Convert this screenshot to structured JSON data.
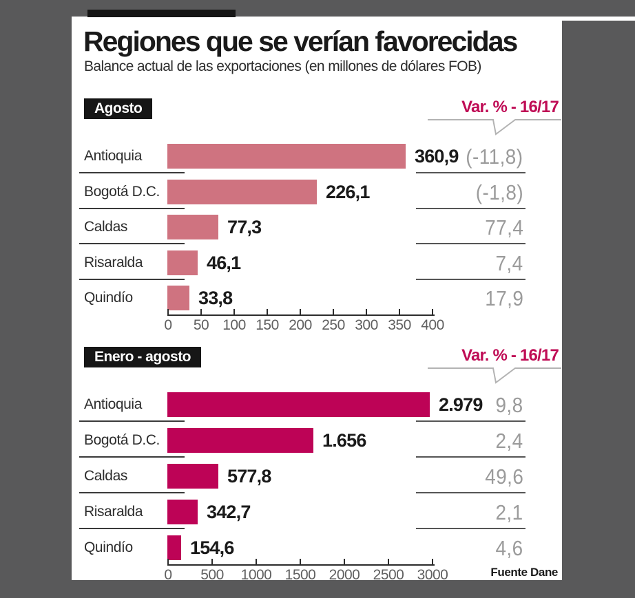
{
  "header": {
    "title": "Regiones que se verían favorecidas",
    "subtitle": "Balance actual de las exportaciones (en millones de dólares FOB)"
  },
  "source": "Fuente Dane",
  "colors": {
    "background": "#59595a",
    "card": "#ffffff",
    "tab_black": "#161616",
    "accent_crimson": "#bf0c55",
    "bar_light_rose": "#cf7380",
    "bar_dark_magenta": "#bd0356",
    "muted_gray_value": "#9b9b9b",
    "axis_label_gray": "#606060"
  },
  "chart_data": [
    {
      "type": "bar",
      "title": "Agosto",
      "var_header": "Var. % - 16/17",
      "categories": [
        "Antioquia",
        "Bogotá D.C.",
        "Caldas",
        "Risaralda",
        "Quindío"
      ],
      "values": [
        360.9,
        226.1,
        77.3,
        46.1,
        33.8
      ],
      "value_labels": [
        "360,9",
        "226,1",
        "77,3",
        "46,1",
        "33,8"
      ],
      "var_values": [
        -11.8,
        -1.8,
        77.4,
        7.4,
        17.9
      ],
      "var_labels": [
        "(-11,8)",
        "(-1,8)",
        "77,4",
        "7,4",
        "17,9"
      ],
      "bar_color": "#cf7380",
      "xlim": [
        0,
        400
      ],
      "x_ticks": [
        0,
        50,
        100,
        150,
        200,
        250,
        300,
        350,
        400
      ],
      "tick_labels": [
        "0",
        "50",
        "100",
        "150",
        "200",
        "250",
        "300",
        "350",
        "400"
      ],
      "xlabel": "",
      "ylabel": "",
      "legend": "none",
      "grid": false
    },
    {
      "type": "bar",
      "title": "Enero - agosto",
      "var_header": "Var. % - 16/17",
      "categories": [
        "Antioquia",
        "Bogotá D.C.",
        "Caldas",
        "Risaralda",
        "Quindío"
      ],
      "values": [
        2979,
        1656,
        577.8,
        342.7,
        154.6
      ],
      "value_labels": [
        "2.979",
        "1.656",
        "577,8",
        "342,7",
        "154,6"
      ],
      "var_values": [
        9.8,
        2.4,
        49.6,
        2.1,
        4.6
      ],
      "var_labels": [
        "9,8",
        "2,4",
        "49,6",
        "2,1",
        "4,6"
      ],
      "bar_color": "#bd0356",
      "xlim": [
        0,
        3000
      ],
      "x_ticks": [
        0,
        500,
        1000,
        1500,
        2000,
        2500,
        3000
      ],
      "tick_labels": [
        "0",
        "500",
        "1000",
        "1500",
        "2000",
        "2500",
        "3000"
      ],
      "xlabel": "",
      "ylabel": "",
      "legend": "none",
      "grid": false
    }
  ]
}
